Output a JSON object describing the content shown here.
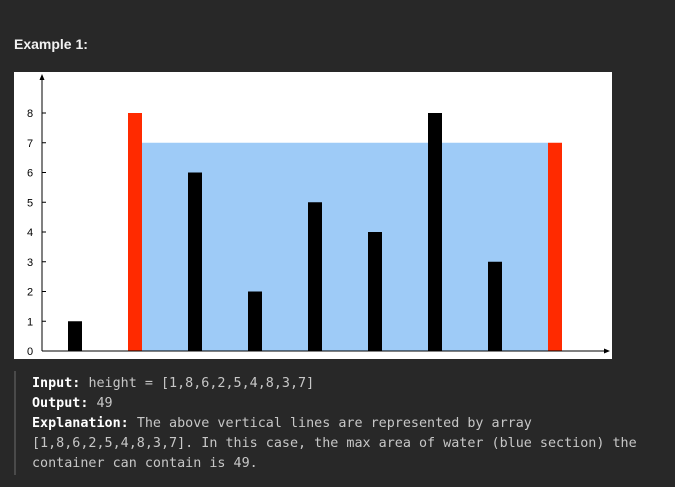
{
  "example": {
    "title": "Example 1:",
    "input_key": "Input:",
    "input_value": "height = [1,8,6,2,5,4,8,3,7]",
    "output_key": "Output:",
    "output_value": "49",
    "explanation_key": "Explanation:",
    "explanation_line1": "The above vertical lines are represented by array",
    "explanation_line2": "[1,8,6,2,5,4,8,3,7]. In this case, the max area of water (blue section) the",
    "explanation_line3": "container can contain is 49."
  },
  "colors": {
    "background": "#282828",
    "plot_background": "#ffffff",
    "bar_default": "#000000",
    "bar_container": "#ff2a00",
    "water": "#9ecbf7"
  },
  "chart_data": {
    "type": "bar",
    "title": "",
    "xlabel": "",
    "ylabel": "",
    "values": [
      1,
      8,
      6,
      2,
      5,
      4,
      8,
      3,
      7
    ],
    "highlighted_indices": [
      1,
      8
    ],
    "water": {
      "from_index": 1,
      "to_index": 8,
      "level": 7
    },
    "ylim": [
      0,
      8
    ],
    "y_ticks": [
      "0",
      "1",
      "2",
      "3",
      "4",
      "5",
      "6",
      "7",
      "8"
    ],
    "grid": false,
    "legend": "none"
  }
}
